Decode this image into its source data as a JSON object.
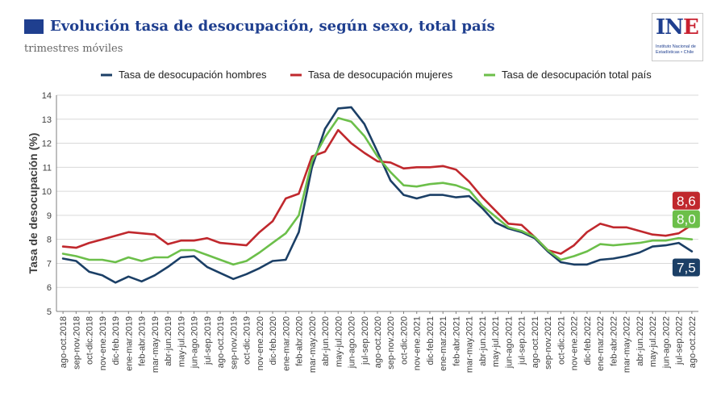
{
  "header": {
    "title": "Evolución tasa de desocupación, según sexo, total país",
    "subtitle": "trimestres móviles"
  },
  "logo": {
    "mark_left": "IN",
    "mark_right": "E",
    "caption_line1": "Instituto Nacional de",
    "caption_line2": "Estadísticas • Chile"
  },
  "chart_data": {
    "type": "line",
    "ylabel": "Tasa de desocupación (%)",
    "xlabel": "",
    "ylim": [
      5,
      14
    ],
    "yticks": [
      5,
      6,
      7,
      8,
      9,
      10,
      11,
      12,
      13,
      14
    ],
    "grid": true,
    "legend_position": "top-center",
    "x": [
      "ago-oct.2018",
      "sep-nov.2018",
      "oct-dic.2018",
      "nov-ene.2019",
      "dic-feb.2019",
      "ene-mar.2019",
      "feb-abr.2019",
      "mar-may.2019",
      "abr-jun.2019",
      "may-jul.2019",
      "jun-ago.2019",
      "jul-sep.2019",
      "ago-oct.2019",
      "sep-nov.2019",
      "oct-dic.2019",
      "nov-ene.2020",
      "dic-feb.2020",
      "ene-mar.2020",
      "feb-abr.2020",
      "mar-may.2020",
      "abr-jun.2020",
      "may-jul.2020",
      "jun-ago.2020",
      "jul-sep.2020",
      "ago-oct.2020",
      "sep-nov.2020",
      "oct-dic.2020",
      "nov-ene.2021",
      "dic-feb.2021",
      "ene-mar.2021",
      "feb-abr.2021",
      "mar-may.2021",
      "abr-jun.2021",
      "may-jul.2021",
      "jun-ago.2021",
      "jul-sep.2021",
      "ago-oct.2021",
      "sep-nov.2021",
      "oct-dic.2021",
      "nov-ene.2022",
      "dic-feb.2022",
      "ene-mar.2022",
      "feb-abr.2022",
      "mar-may.2022",
      "abr-jun.2022",
      "may-jul.2022",
      "jun-ago.2022",
      "jul-sep.2022",
      "ago-oct.2022"
    ],
    "series": [
      {
        "name": "Tasa de desocupación hombres",
        "color": "#1b3f66",
        "end_label": "7,5",
        "values": [
          7.2,
          7.1,
          6.65,
          6.5,
          6.2,
          6.45,
          6.25,
          6.5,
          6.85,
          7.25,
          7.3,
          6.85,
          6.6,
          6.35,
          6.55,
          6.8,
          7.1,
          7.15,
          8.3,
          11.0,
          12.6,
          13.45,
          13.5,
          12.8,
          11.65,
          10.45,
          9.85,
          9.7,
          9.85,
          9.85,
          9.75,
          9.8,
          9.3,
          8.7,
          8.45,
          8.3,
          8.05,
          7.5,
          7.05,
          6.95,
          6.95,
          7.15,
          7.2,
          7.3,
          7.45,
          7.7,
          7.75,
          7.85,
          7.5
        ]
      },
      {
        "name": "Tasa de desocupación mujeres",
        "color": "#c0282d",
        "end_label": "8,6",
        "values": [
          7.7,
          7.65,
          7.85,
          8.0,
          8.15,
          8.3,
          8.25,
          8.2,
          7.8,
          7.95,
          7.95,
          8.05,
          7.85,
          7.8,
          7.75,
          8.3,
          8.75,
          9.7,
          9.9,
          11.45,
          11.65,
          12.55,
          12.0,
          11.6,
          11.25,
          11.2,
          10.95,
          11.0,
          11.0,
          11.05,
          10.9,
          10.4,
          9.75,
          9.2,
          8.65,
          8.6,
          8.1,
          7.55,
          7.4,
          7.75,
          8.3,
          8.65,
          8.5,
          8.5,
          8.35,
          8.2,
          8.15,
          8.25,
          8.6
        ]
      },
      {
        "name": "Tasa de desocupación total país",
        "color": "#6cbf4a",
        "end_label": "8,0",
        "values": [
          7.4,
          7.3,
          7.15,
          7.15,
          7.05,
          7.25,
          7.1,
          7.25,
          7.25,
          7.55,
          7.55,
          7.35,
          7.15,
          6.95,
          7.1,
          7.45,
          7.85,
          8.25,
          9.0,
          11.25,
          12.25,
          13.05,
          12.9,
          12.3,
          11.45,
          10.8,
          10.25,
          10.2,
          10.3,
          10.35,
          10.25,
          10.05,
          9.4,
          8.95,
          8.5,
          8.35,
          8.1,
          7.55,
          7.15,
          7.3,
          7.5,
          7.8,
          7.75,
          7.8,
          7.85,
          7.95,
          7.95,
          8.05,
          8.0
        ]
      }
    ]
  }
}
